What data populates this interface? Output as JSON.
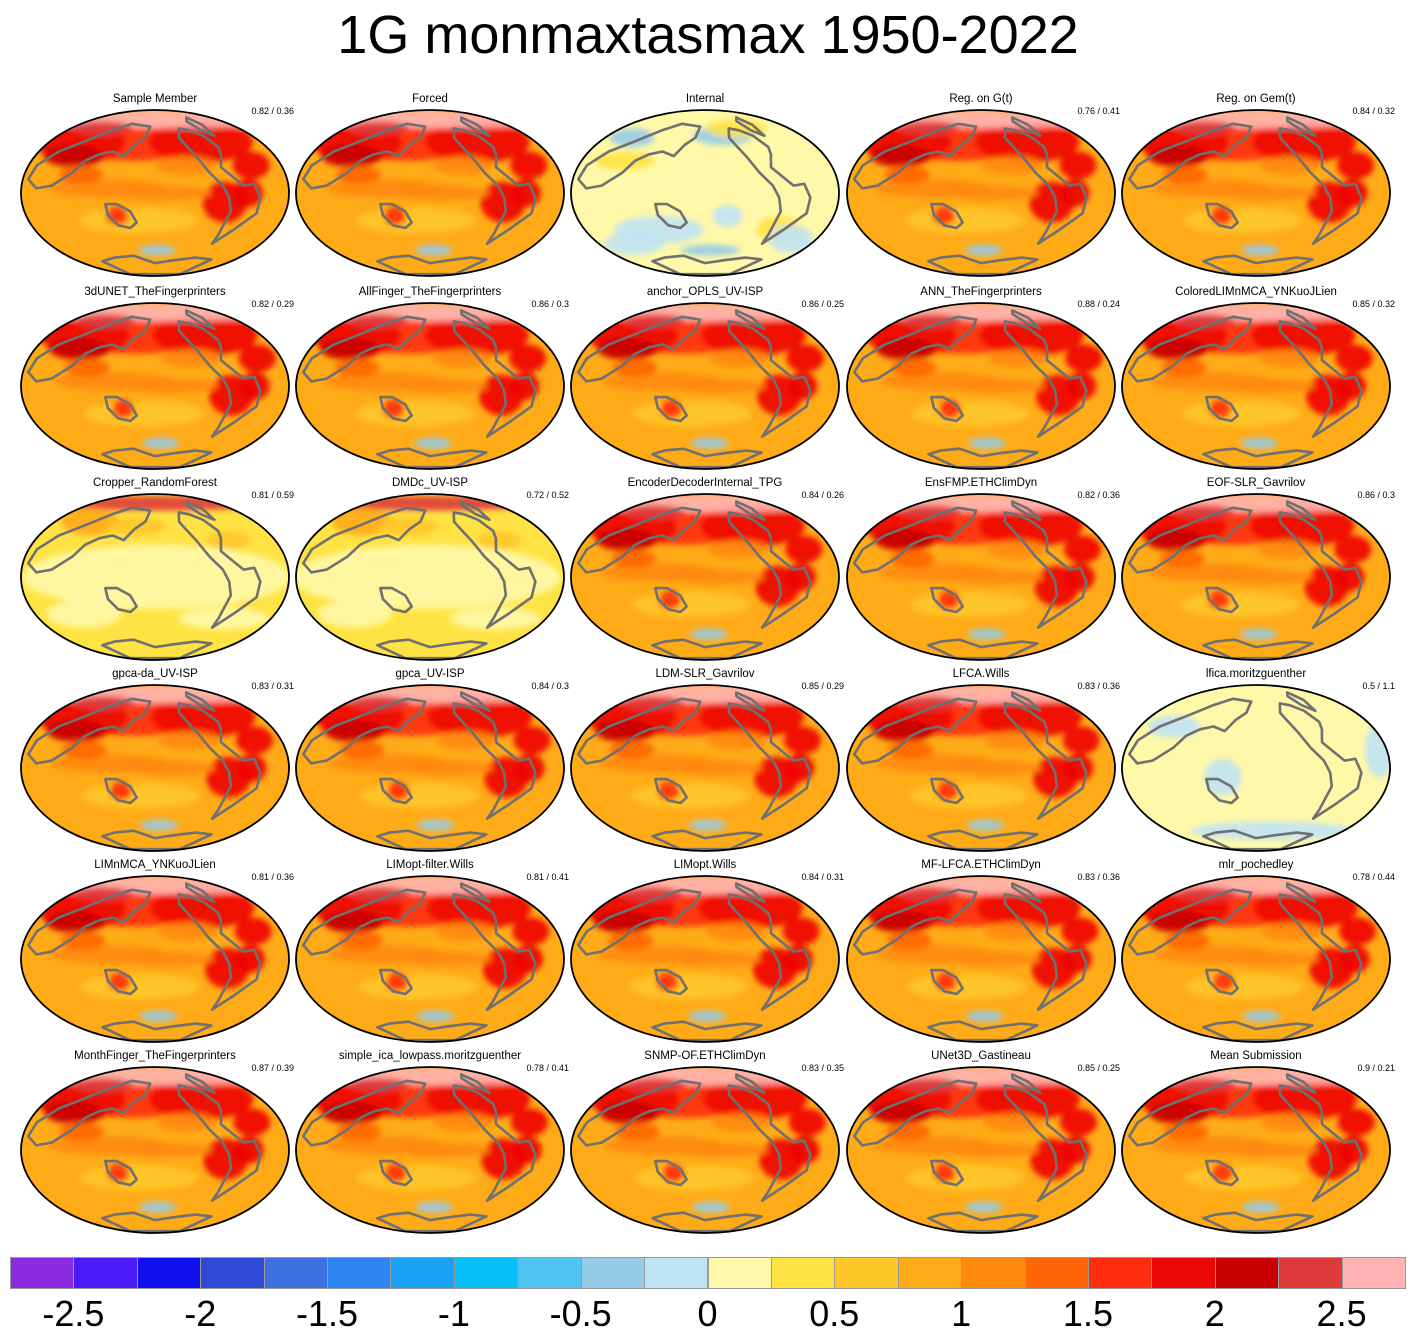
{
  "title": "1G monmaxtasmax 1950-2022",
  "chart_data": {
    "type": "heatmap",
    "title": "1G monmaxtasmax 1950-2022",
    "description_units": "map panels of gridded trend values; color scale from -2.5 to 2.5",
    "colorbar": {
      "colors": [
        "#8a2be2",
        "#4b1cf8",
        "#1010ee",
        "#2f4ad6",
        "#3e70e0",
        "#2c85f2",
        "#19a2f6",
        "#08c0f8",
        "#4fc4f2",
        "#96cbe8",
        "#c0e3f4",
        "#fff8a8",
        "#ffe344",
        "#ffc627",
        "#ffab18",
        "#ff8a0c",
        "#ff6506",
        "#ff2c0d",
        "#ee0505",
        "#c80000",
        "#de3a3a",
        "#ffb2b2"
      ],
      "tick_labels": [
        "-2.5",
        "-2",
        "-1.5",
        "-1",
        "-0.5",
        "0",
        "0.5",
        "1",
        "1.5",
        "2",
        "2.5"
      ],
      "tick_values": [
        -2.5,
        -2,
        -1.5,
        -1,
        -0.5,
        0,
        0.5,
        1,
        1.5,
        2,
        2.5
      ],
      "range": [
        -2.75,
        2.75
      ]
    },
    "panels": [
      {
        "name": "Sample Member",
        "score": "0.82 / 0.36",
        "style": "warm"
      },
      {
        "name": "Forced",
        "score": "",
        "style": "warm"
      },
      {
        "name": "Internal",
        "score": "",
        "style": "internal"
      },
      {
        "name": "Reg. on G(t)",
        "score": "0.76 / 0.41",
        "style": "warm"
      },
      {
        "name": "Reg. on Gem(t)",
        "score": "0.84 / 0.32",
        "style": "warm"
      },
      {
        "name": "3dUNET_TheFingerprinters",
        "score": "0.82 / 0.29",
        "style": "warm"
      },
      {
        "name": "AllFinger_TheFingerprinters",
        "score": "0.86 / 0.3",
        "style": "warm"
      },
      {
        "name": "anchor_OPLS_UV-ISP",
        "score": "0.86 / 0.25",
        "style": "warm"
      },
      {
        "name": "ANN_TheFingerprinters",
        "score": "0.88 / 0.24",
        "style": "warm"
      },
      {
        "name": "ColoredLIMnMCA_YNKuoJLien",
        "score": "0.85 / 0.32",
        "style": "warm"
      },
      {
        "name": "Cropper_RandomForest",
        "score": "0.81 / 0.59",
        "style": "light"
      },
      {
        "name": "DMDc_UV-ISP",
        "score": "0.72 / 0.52",
        "style": "light"
      },
      {
        "name": "EncoderDecoderInternal_TPG",
        "score": "0.84 / 0.26",
        "style": "warm"
      },
      {
        "name": "EnsFMP.ETHClimDyn",
        "score": "0.82 / 0.36",
        "style": "warm"
      },
      {
        "name": "EOF-SLR_Gavrilov",
        "score": "0.86 / 0.3",
        "style": "warm"
      },
      {
        "name": "gpca-da_UV-ISP",
        "score": "0.83 / 0.31",
        "style": "warm"
      },
      {
        "name": "gpca_UV-ISP",
        "score": "0.84 / 0.3",
        "style": "warm"
      },
      {
        "name": "LDM-SLR_Gavrilov",
        "score": "0.85 / 0.29",
        "style": "warm"
      },
      {
        "name": "LFCA.Wills",
        "score": "0.83 / 0.36",
        "style": "warm"
      },
      {
        "name": "lfica.moritzguenther",
        "score": "0.5 / 1.1",
        "style": "pale"
      },
      {
        "name": "LIMnMCA_YNKuoJLien",
        "score": "0.81 / 0.36",
        "style": "warm"
      },
      {
        "name": "LIMopt-filter.Wills",
        "score": "0.81 / 0.41",
        "style": "warm"
      },
      {
        "name": "LIMopt.Wills",
        "score": "0.84 / 0.31",
        "style": "warm"
      },
      {
        "name": "MF-LFCA.ETHClimDyn",
        "score": "0.83 / 0.36",
        "style": "warm"
      },
      {
        "name": "mlr_pochedley",
        "score": "0.78 / 0.44",
        "style": "warm"
      },
      {
        "name": "MonthFinger_TheFingerprinters",
        "score": "0.87 / 0.39",
        "style": "warm"
      },
      {
        "name": "simple_ica_lowpass.moritzguenther",
        "score": "0.78 / 0.41",
        "style": "warm"
      },
      {
        "name": "SNMP-OF.ETHClimDyn",
        "score": "0.83 / 0.35",
        "style": "warm"
      },
      {
        "name": "UNet3D_Gastineau",
        "score": "0.85 / 0.25",
        "style": "warm"
      },
      {
        "name": "Mean Submission",
        "score": "0.9 / 0.21",
        "style": "warm"
      }
    ]
  }
}
